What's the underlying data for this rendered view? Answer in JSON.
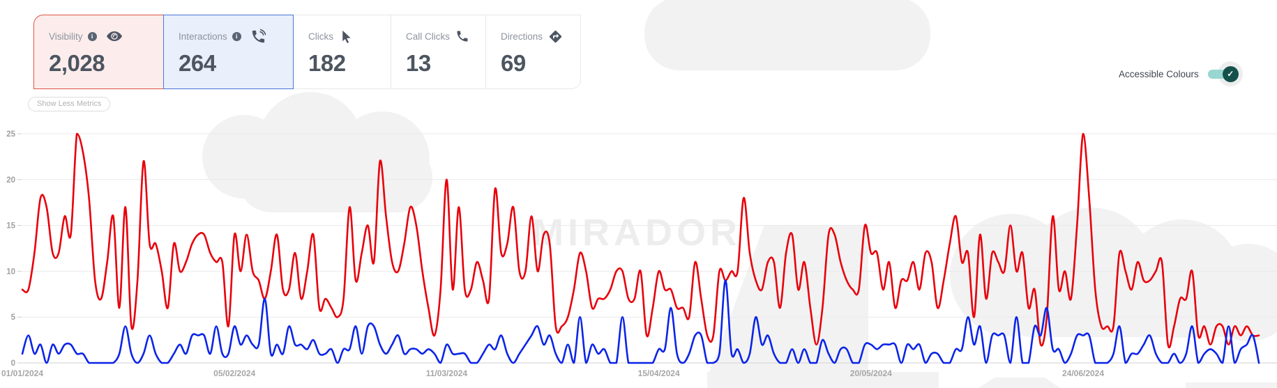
{
  "metric_cards": [
    {
      "label": "Visibility",
      "value": "2,028",
      "icon": "eye-icon",
      "info": true,
      "state": "selected",
      "accent": "#dd5449",
      "bg": "#fcedec"
    },
    {
      "label": "Interactions",
      "value": "264",
      "icon": "phone-ring-icon",
      "info": true,
      "state": "selected",
      "accent": "#4a74d8",
      "bg": "#e9effb"
    },
    {
      "label": "Clicks",
      "value": "182",
      "icon": "cursor-icon",
      "info": false,
      "state": "default"
    },
    {
      "label": "Call Clicks",
      "value": "13",
      "icon": "phone-icon",
      "info": false,
      "state": "default"
    },
    {
      "label": "Directions",
      "value": "69",
      "icon": "directions-icon",
      "info": false,
      "state": "default"
    }
  ],
  "show_less_button": "Show Less Metrics",
  "accessible_colours": {
    "label": "Accessible Colours",
    "enabled": true,
    "toggle_color": "#15514c",
    "track_color": "#97d6d1"
  },
  "watermark": "MIRADOR",
  "glyphs": {
    "info": "i",
    "check": "✓"
  },
  "chart_data": {
    "type": "line",
    "title": "",
    "xlabel": "",
    "ylabel": "",
    "grid": true,
    "legend_position": "none",
    "x_axis": {
      "unit": "day",
      "start_date": "01/01/2024",
      "tick_labels": [
        "01/01/2024",
        "05/02/2024",
        "11/03/2024",
        "15/04/2024",
        "20/05/2024",
        "24/06/2024"
      ],
      "tick_days": [
        0,
        35,
        70,
        105,
        140,
        175
      ]
    },
    "y_axis": {
      "ticks": [
        0,
        5,
        10,
        15,
        20,
        25
      ],
      "range": [
        0,
        25
      ]
    },
    "series": [
      {
        "name": "Visibility",
        "color": "#e8000b",
        "values": [
          8,
          8,
          12,
          18,
          17,
          12,
          12,
          16,
          14,
          25,
          23,
          18,
          9,
          7,
          11,
          16,
          6,
          17,
          4,
          9,
          22,
          13,
          13,
          10,
          6,
          13,
          10,
          11,
          13,
          14,
          14,
          12,
          11,
          11,
          4,
          14,
          10,
          14,
          10,
          9,
          7,
          10,
          14,
          8,
          8,
          12,
          7,
          10,
          14,
          6,
          7,
          6,
          5,
          7,
          17,
          9,
          12,
          15,
          11,
          22,
          16,
          11,
          10,
          13,
          17,
          15,
          10,
          6,
          3,
          8,
          20,
          8,
          17,
          8,
          8,
          11,
          9,
          7,
          19,
          12,
          13,
          17,
          10,
          10,
          16,
          10,
          14,
          13,
          4,
          4,
          5,
          8,
          12,
          10,
          6,
          7,
          7,
          8,
          10,
          10,
          7,
          7,
          10,
          3,
          6,
          10,
          8,
          8,
          6,
          6,
          5,
          11,
          7,
          3,
          3,
          10,
          9,
          10,
          10,
          18,
          12,
          9,
          8,
          11,
          11,
          6,
          12,
          14,
          8,
          11,
          6,
          2,
          6,
          14,
          14,
          11,
          9,
          8,
          8,
          15,
          12,
          12,
          8,
          11,
          6,
          9,
          9,
          11,
          8,
          12,
          11,
          6,
          9,
          13,
          16,
          11,
          12,
          5,
          14,
          7,
          12,
          11,
          10,
          15,
          10,
          12,
          6,
          8,
          2,
          5,
          16,
          8,
          10,
          7,
          15,
          25,
          18,
          8,
          4,
          4,
          4,
          12,
          10,
          8,
          11,
          9,
          9,
          10,
          11,
          2,
          4,
          7,
          7,
          10,
          3,
          4,
          2,
          4,
          4,
          2,
          4,
          3,
          4,
          3,
          3
        ]
      },
      {
        "name": "Interactions",
        "color": "#0b24e8",
        "values": [
          1,
          3,
          1,
          2,
          0,
          2,
          1,
          2,
          2,
          1,
          1,
          0,
          0,
          0,
          0,
          0,
          1,
          4,
          1,
          0,
          1,
          3,
          1,
          0,
          0,
          1,
          2,
          1,
          3,
          3,
          3,
          1,
          4,
          1,
          1,
          4,
          2,
          3,
          2,
          2,
          7,
          1,
          2,
          1,
          4,
          2,
          2,
          1.5,
          2.5,
          1,
          1,
          1.5,
          0,
          1.5,
          1.5,
          4,
          1,
          4,
          4,
          2,
          1,
          2,
          3,
          1,
          1.5,
          1.5,
          1,
          1.5,
          1,
          0,
          2,
          1,
          1,
          1,
          0,
          0,
          1,
          2,
          1.5,
          3,
          1,
          0,
          1,
          2,
          3,
          4,
          2,
          3,
          1,
          0,
          2,
          0,
          5,
          0,
          2,
          1,
          1.5,
          0,
          0,
          5,
          0,
          0,
          0,
          0,
          0,
          1.5,
          1.5,
          6,
          1,
          0,
          1,
          3,
          3,
          0,
          0,
          1,
          9,
          1,
          1.5,
          0,
          1,
          5,
          2,
          3,
          1,
          0,
          0,
          1.5,
          0,
          1.5,
          0,
          0,
          2.5,
          1,
          0,
          1.5,
          1.5,
          0,
          0,
          2,
          2,
          1.5,
          2,
          2,
          2,
          0,
          2,
          1.5,
          2,
          0,
          1,
          1,
          0,
          0,
          1.5,
          1.5,
          5,
          2,
          4,
          0,
          3,
          3,
          3,
          0,
          5,
          0,
          0,
          4,
          3,
          6,
          1.5,
          1.5,
          0,
          1,
          3,
          3,
          3,
          0,
          0,
          0,
          1,
          4,
          0,
          1,
          1,
          2,
          3,
          1,
          0,
          0,
          1,
          0,
          1,
          4,
          0,
          1,
          1.5,
          1,
          0,
          4,
          0,
          1.5,
          2,
          3,
          0
        ]
      }
    ]
  }
}
